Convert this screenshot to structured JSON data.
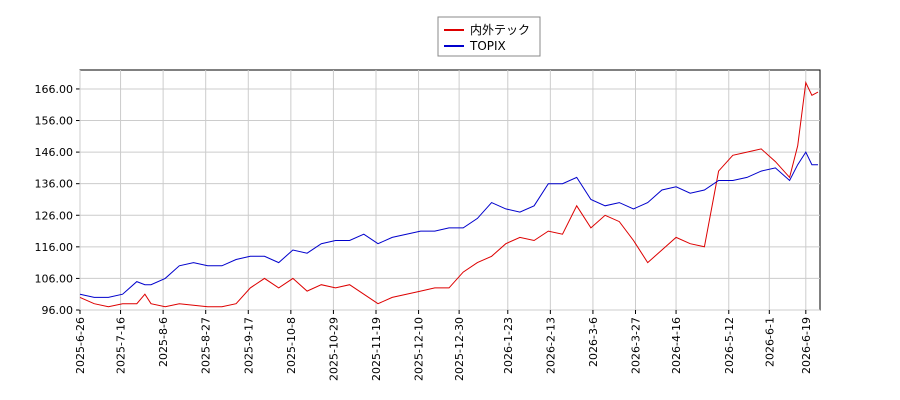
{
  "chart_data": {
    "type": "line",
    "x": [
      "2025-6-26",
      "2025-7-3",
      "2025-7-10",
      "2025-7-17",
      "2025-7-24",
      "2025-7-28",
      "2025-7-31",
      "2025-8-7",
      "2025-8-14",
      "2025-8-21",
      "2025-8-28",
      "2025-9-4",
      "2025-9-11",
      "2025-9-18",
      "2025-9-25",
      "2025-10-2",
      "2025-10-9",
      "2025-10-16",
      "2025-10-23",
      "2025-10-30",
      "2025-11-6",
      "2025-11-13",
      "2025-11-20",
      "2025-11-27",
      "2025-12-4",
      "2025-12-11",
      "2025-12-18",
      "2025-12-25",
      "2026-1-1",
      "2026-1-8",
      "2026-1-15",
      "2026-1-22",
      "2026-1-29",
      "2026-2-5",
      "2026-2-12",
      "2026-2-19",
      "2026-2-26",
      "2026-3-5",
      "2026-3-12",
      "2026-3-19",
      "2026-3-26",
      "2026-4-2",
      "2026-4-9",
      "2026-4-16",
      "2026-4-23",
      "2026-4-30",
      "2026-5-7",
      "2026-5-14",
      "2026-5-21",
      "2026-5-28",
      "2026-6-4",
      "2026-6-11",
      "2026-6-15",
      "2026-6-19",
      "2026-6-22",
      "2026-6-25"
    ],
    "series": [
      {
        "name": "内外テック",
        "color": "#dd0000",
        "values": [
          100,
          98,
          97,
          98,
          98,
          101,
          98,
          97,
          98,
          97.5,
          97,
          97,
          98,
          103,
          106,
          103,
          106,
          102,
          104,
          103,
          104,
          101,
          98,
          100,
          101,
          102,
          103,
          103,
          108,
          111,
          113,
          117,
          119,
          118,
          121,
          120,
          129,
          122,
          126,
          124,
          118,
          111,
          115,
          119,
          117,
          116,
          140,
          145,
          146,
          147,
          143,
          138,
          148,
          168,
          164,
          165
        ]
      },
      {
        "name": "TOPIX",
        "color": "#0000cc",
        "values": [
          101,
          100,
          100,
          101,
          105,
          104,
          104,
          106,
          110,
          111,
          110,
          110,
          112,
          113,
          113,
          111,
          115,
          114,
          117,
          118,
          118,
          120,
          117,
          119,
          120,
          121,
          121,
          122,
          122,
          125,
          130,
          128,
          127,
          129,
          136,
          136,
          138,
          131,
          129,
          130,
          128,
          130,
          134,
          135,
          133,
          134,
          137,
          137,
          138,
          140,
          141,
          137,
          142,
          146,
          142,
          142
        ]
      }
    ],
    "xlim": [
      "2025-6-26",
      "2026-6-26"
    ],
    "xticks": [
      "2025-6-26",
      "2025-7-16",
      "2025-8-6",
      "2025-8-27",
      "2025-9-17",
      "2025-10-8",
      "2025-10-29",
      "2025-11-19",
      "2025-12-10",
      "2025-12-30",
      "2026-1-23",
      "2026-2-13",
      "2026-3-6",
      "2026-3-27",
      "2026-4-16",
      "2026-5-12",
      "2026-6-1",
      "2026-6-19"
    ],
    "ylim": [
      96,
      172
    ],
    "yticks": [
      {
        "value": 96,
        "label": "96.00"
      },
      {
        "value": 106,
        "label": "106.00"
      },
      {
        "value": 116,
        "label": "116.00"
      },
      {
        "value": 126,
        "label": "126.00"
      },
      {
        "value": 136,
        "label": "136.00"
      },
      {
        "value": 146,
        "label": "146.00"
      },
      {
        "value": 156,
        "label": "156.00"
      },
      {
        "value": 166,
        "label": "166.00"
      }
    ],
    "grid": true
  }
}
